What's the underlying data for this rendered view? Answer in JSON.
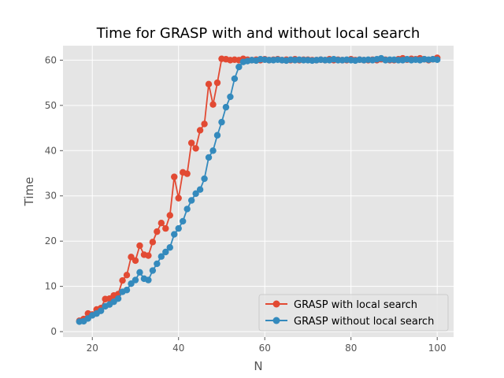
{
  "chart_data": {
    "type": "line",
    "title": "Time for GRASP with and without local search",
    "xlabel": "N",
    "ylabel": "Time",
    "xlim": [
      13.2,
      103.8
    ],
    "ylim": [
      -1.2,
      63.2
    ],
    "xticks": [
      20,
      40,
      60,
      80,
      100
    ],
    "yticks": [
      0,
      10,
      20,
      30,
      40,
      50,
      60
    ],
    "grid": true,
    "legend_position": "lower-right",
    "x": [
      17,
      18,
      19,
      20,
      21,
      22,
      23,
      24,
      25,
      26,
      27,
      28,
      29,
      30,
      31,
      32,
      33,
      34,
      35,
      36,
      37,
      38,
      39,
      40,
      41,
      42,
      43,
      44,
      45,
      46,
      47,
      48,
      49,
      50,
      51,
      52,
      53,
      54,
      55,
      56,
      57,
      58,
      59,
      60,
      61,
      62,
      63,
      64,
      65,
      66,
      67,
      68,
      69,
      70,
      71,
      72,
      73,
      74,
      75,
      76,
      77,
      78,
      79,
      80,
      81,
      82,
      83,
      84,
      85,
      86,
      87,
      88,
      89,
      90,
      91,
      92,
      93,
      94,
      95,
      96,
      97,
      98,
      99,
      100
    ],
    "series": [
      {
        "name": "GRASP with local search",
        "color": "#E24A33",
        "values": [
          2.4,
          2.8,
          4.0,
          3.8,
          4.9,
          5.2,
          7.2,
          7.3,
          8.0,
          8.3,
          11.3,
          12.5,
          16.5,
          15.7,
          19.0,
          17.0,
          16.8,
          19.8,
          22.1,
          24.0,
          22.8,
          25.7,
          34.2,
          29.5,
          35.2,
          34.9,
          41.7,
          40.5,
          44.5,
          45.9,
          54.7,
          50.2,
          55.0,
          60.3,
          60.2,
          60.0,
          60.1,
          60.0,
          60.3,
          60.1,
          60.0,
          60.1,
          60.0,
          60.2,
          60.0,
          60.1,
          60.2,
          60.0,
          60.1,
          60.0,
          60.2,
          60.0,
          60.1,
          60.1,
          60.0,
          60.0,
          60.1,
          60.0,
          60.2,
          60.0,
          60.1,
          60.0,
          60.0,
          60.2,
          60.0,
          60.1,
          60.0,
          60.0,
          60.1,
          60.0,
          60.2,
          60.1,
          60.0,
          60.0,
          60.2,
          60.4,
          60.1,
          60.3,
          60.2,
          60.4,
          60.2,
          60.0,
          60.2,
          60.5
        ]
      },
      {
        "name": "GRASP without local search",
        "color": "#348ABD",
        "values": [
          2.2,
          2.3,
          2.9,
          3.6,
          4.0,
          4.6,
          5.6,
          6.0,
          6.6,
          7.3,
          8.8,
          9.2,
          10.6,
          11.4,
          13.1,
          11.7,
          11.4,
          13.5,
          15.0,
          16.6,
          17.6,
          18.6,
          21.5,
          22.8,
          24.4,
          27.1,
          29.0,
          30.5,
          31.4,
          33.8,
          38.5,
          40.0,
          43.4,
          46.3,
          49.6,
          51.9,
          55.9,
          58.5,
          59.6,
          59.8,
          60.0,
          59.9,
          60.2,
          60.1,
          60.0,
          60.0,
          60.1,
          60.0,
          59.9,
          60.1,
          60.0,
          60.1,
          60.0,
          60.0,
          59.9,
          60.0,
          60.1,
          60.0,
          60.0,
          60.2,
          60.0,
          60.0,
          60.1,
          60.0,
          59.9,
          60.1,
          60.0,
          60.1,
          60.0,
          60.2,
          60.4,
          60.0,
          60.1,
          60.1,
          60.0,
          60.0,
          60.2,
          60.0,
          60.1,
          60.0,
          60.2,
          60.1,
          60.2,
          60.1
        ]
      }
    ]
  }
}
